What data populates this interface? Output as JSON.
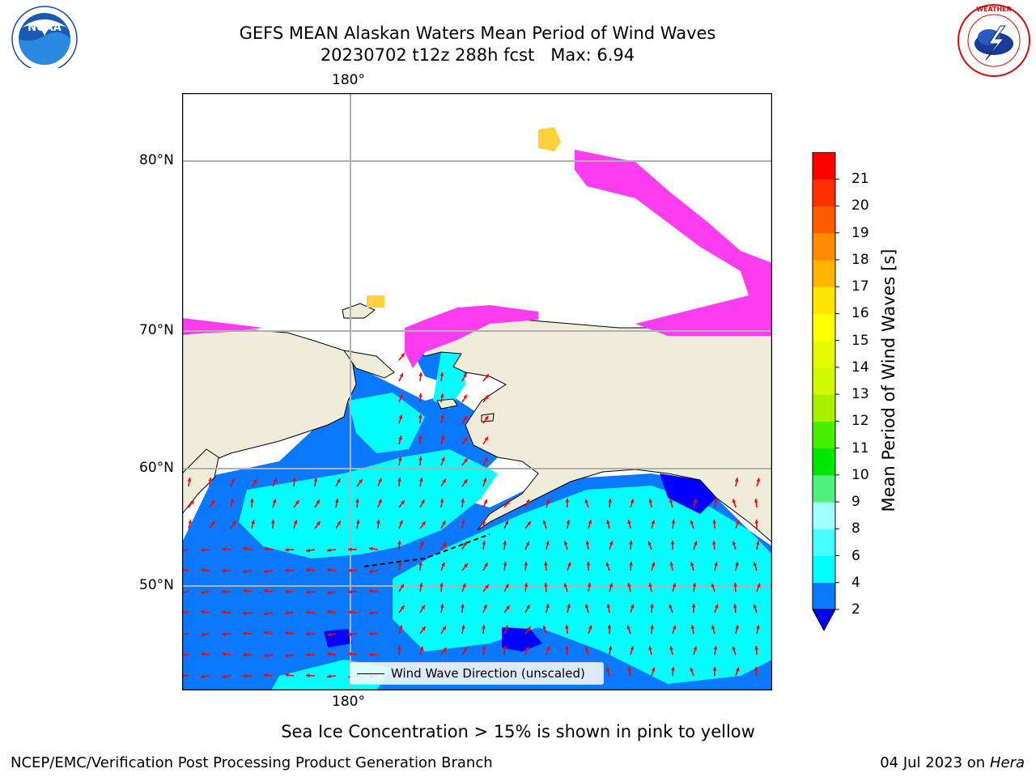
{
  "header": {
    "title_line1": "GEFS MEAN Alaskan Waters Mean Period of Wind Waves",
    "title_line2": "20230702 t12z 288h fcst   Max: 6.94"
  },
  "logos": {
    "noara_text": "NOAA",
    "noaa_ring": "NATIONAL OCEANIC AND ATMOSPHERIC ADMINISTRATION · U.S. DEPARTMENT OF COMMERCE",
    "nws_ring": "NATIONAL WEATHER SERVICE"
  },
  "map": {
    "lon_top_label": "180°",
    "lon_bottom_label": "180°",
    "lat_labels": [
      "80°N",
      "70°N",
      "60°N",
      "50°N"
    ],
    "legend_label": "Wind Wave Direction (unscaled)",
    "colors": {
      "land": "#efedda",
      "ocean_2_4": "#0a78ff",
      "ocean_4_6": "#00ffff",
      "ice_pink": "#ff3cf0",
      "ice_yellow": "#ffd23c",
      "arrow": "#ff0000"
    }
  },
  "colorbar": {
    "label": "Mean Period of Wind Waves [s]",
    "ticks": [
      "2",
      "4",
      "6",
      "8",
      "9",
      "10",
      "11",
      "12",
      "13",
      "14",
      "15",
      "16",
      "17",
      "18",
      "19",
      "20",
      "21"
    ],
    "colors": [
      "#0a78ff",
      "#00ffff",
      "#46ffff",
      "#a0ffff",
      "#50f07c",
      "#00e600",
      "#46f000",
      "#aaf000",
      "#d2fa00",
      "#e6fa00",
      "#ffff00",
      "#ffe600",
      "#ffb400",
      "#ff8c00",
      "#ff5a00",
      "#ff3000",
      "#ff0000"
    ],
    "extend_color": "#0000ff"
  },
  "captions": {
    "sea_ice_note": "Sea Ice Concentration > 15% is shown in pink to yellow",
    "branch": "NCEP/EMC/Verification Post Processing Product Generation Branch",
    "date_prefix": "04 Jul 2023 on ",
    "date_machine": "Hera"
  }
}
